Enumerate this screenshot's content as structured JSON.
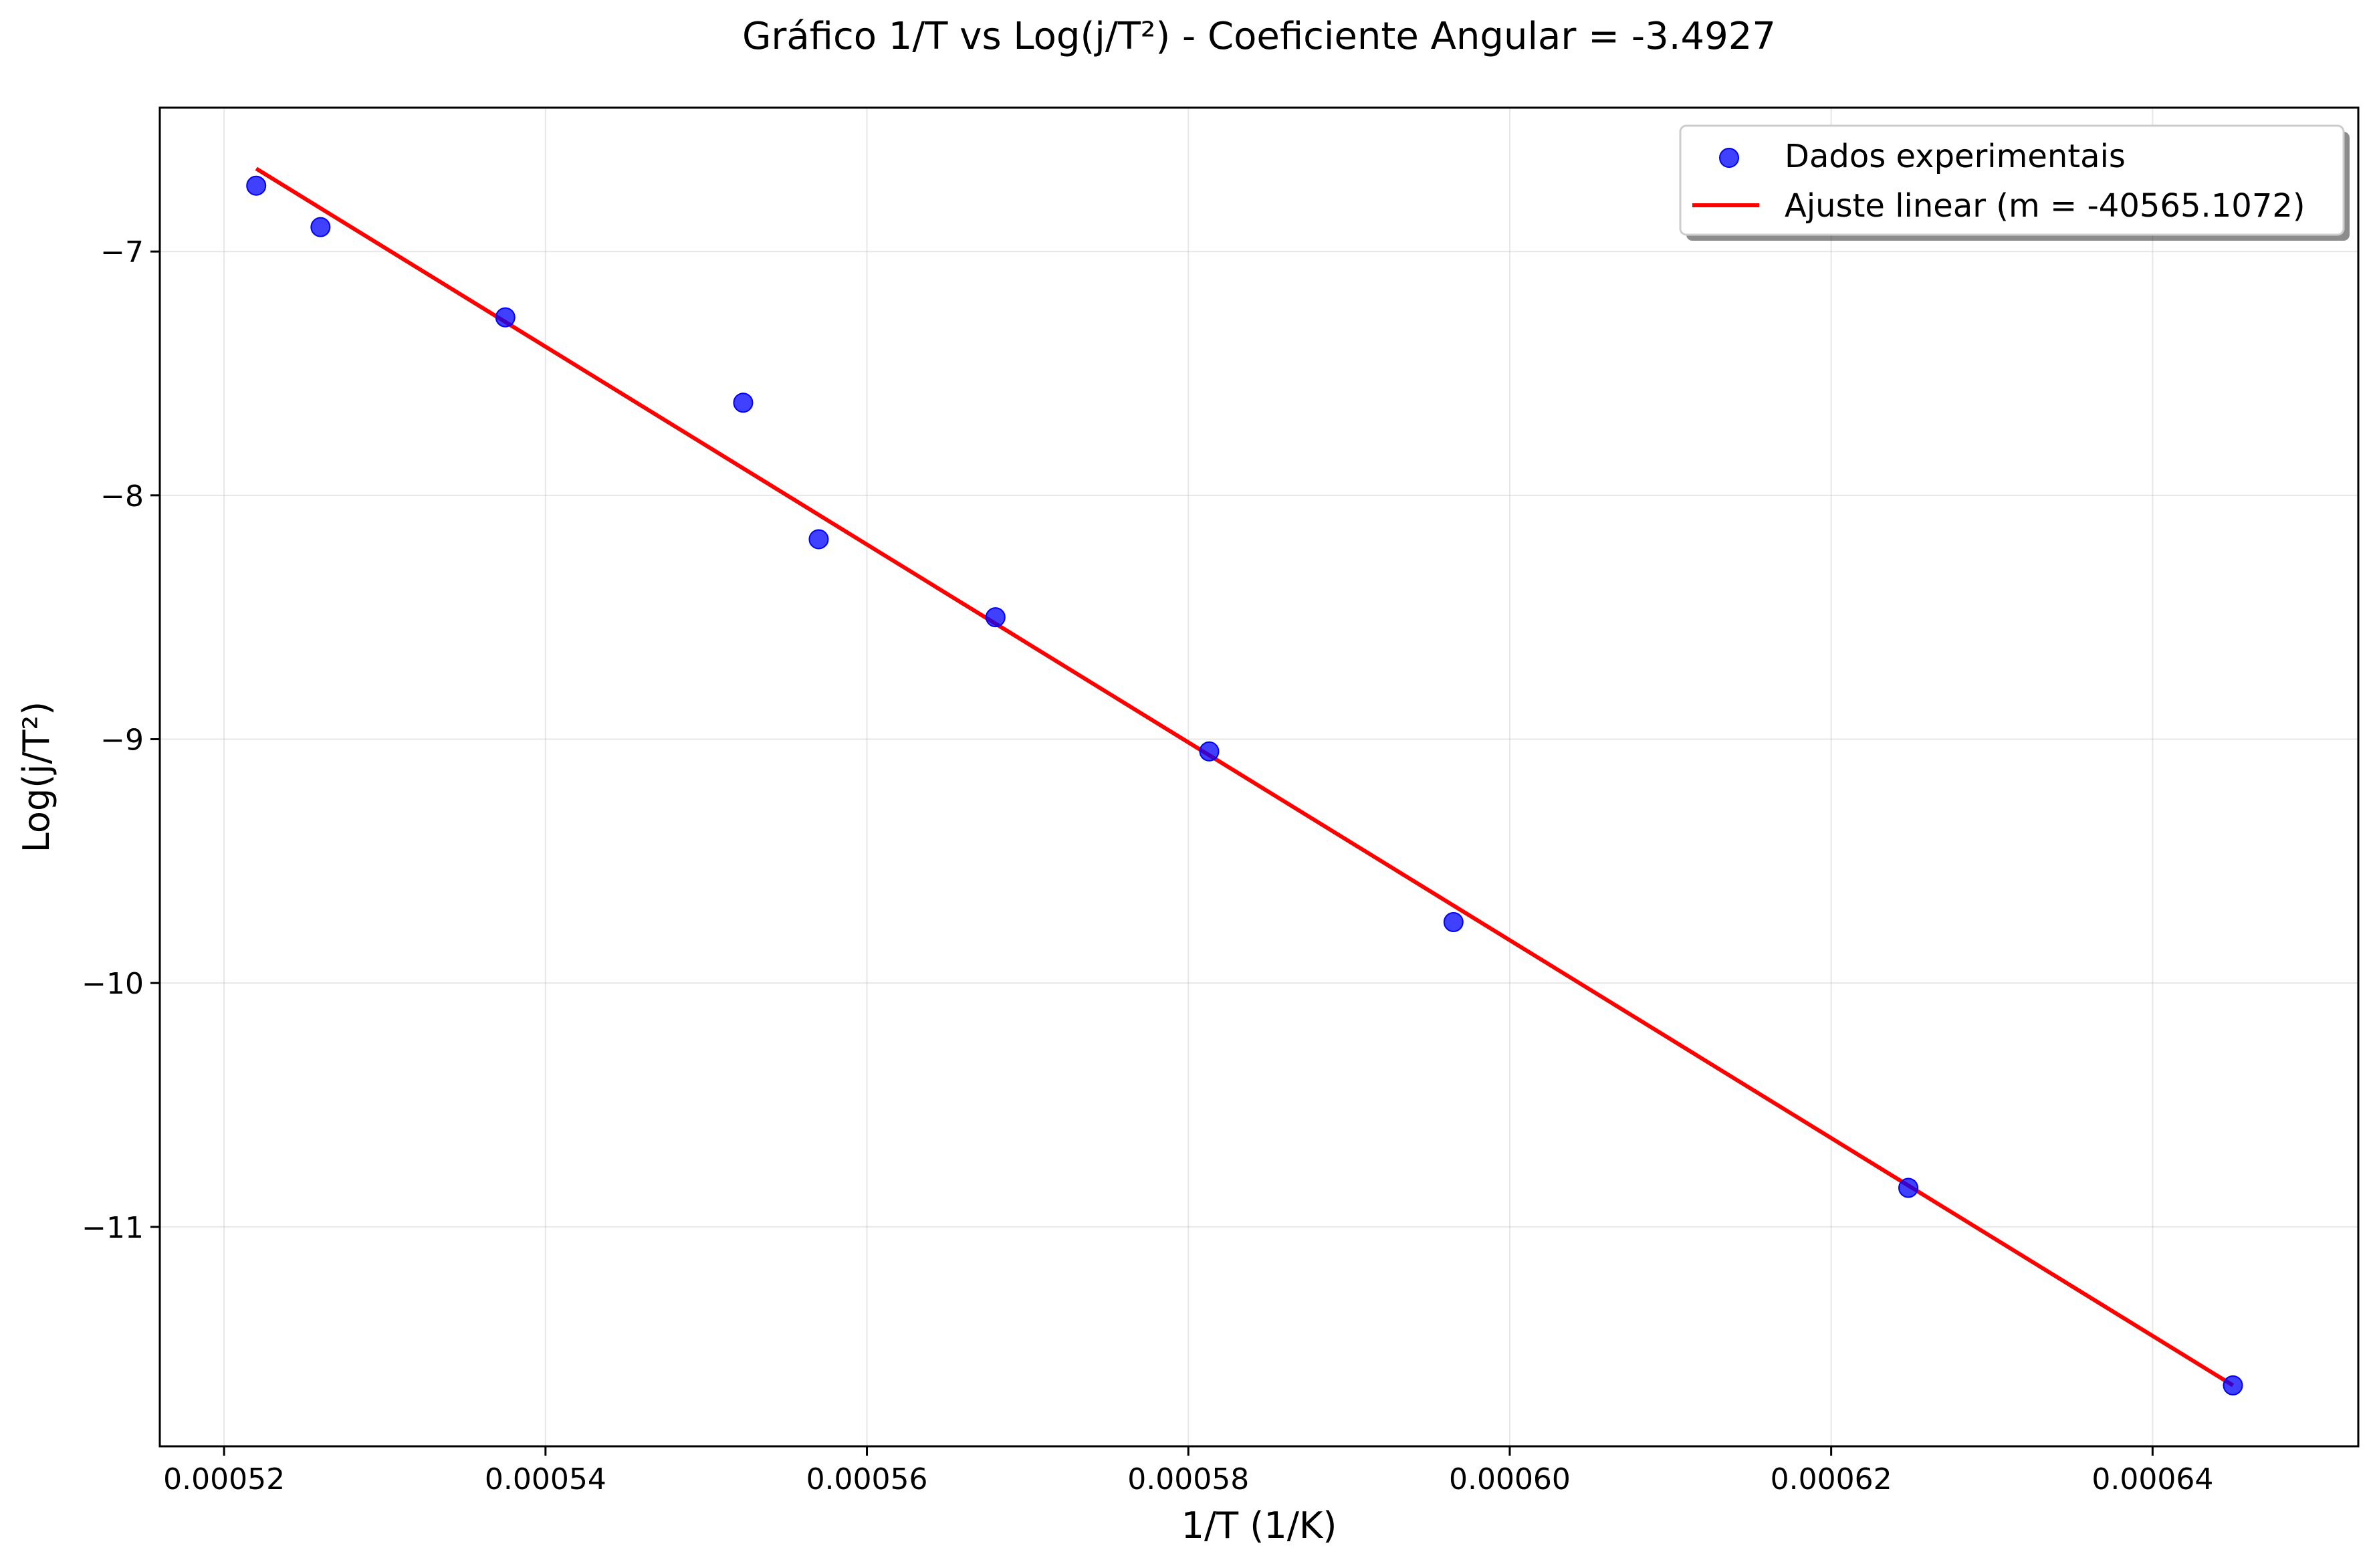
{
  "chart_data": {
    "type": "scatter",
    "title": "Gráfico 1/T vs Log(j/T²) - Coeficiente Angular = -3.4927",
    "xlabel": "1/T (1/K)",
    "ylabel": "Log(j/T²)",
    "xlim": [
      0.000516,
      0.0006528
    ],
    "ylim": [
      -11.9,
      -6.41
    ],
    "x_ticks": [
      0.00052,
      0.00054,
      0.00056,
      0.00058,
      0.0006,
      0.00062,
      0.00064
    ],
    "x_tick_labels": [
      "0.00052",
      "0.00054",
      "0.00056",
      "0.00058",
      "0.00060",
      "0.00062",
      "0.00064"
    ],
    "y_ticks": [
      -11,
      -10,
      -9,
      -8,
      -7
    ],
    "y_tick_labels": [
      "−11",
      "−10",
      "−9",
      "−8",
      "−7"
    ],
    "grid": true,
    "legend_position": "top-right",
    "series": [
      {
        "name": "Dados experimentais",
        "kind": "scatter",
        "color": "#0000ff",
        "points": [
          {
            "x": 0.000522,
            "y": -6.73
          },
          {
            "x": 0.000526,
            "y": -6.9
          },
          {
            "x": 0.0005375,
            "y": -7.27
          },
          {
            "x": 0.0005523,
            "y": -7.62
          },
          {
            "x": 0.000557,
            "y": -8.18
          },
          {
            "x": 0.000568,
            "y": -8.5
          },
          {
            "x": 0.0005813,
            "y": -9.05
          },
          {
            "x": 0.0005965,
            "y": -9.75
          },
          {
            "x": 0.0006248,
            "y": -10.84
          },
          {
            "x": 0.000645,
            "y": -11.65
          }
        ]
      },
      {
        "name": "Ajuste linear (m = -40565.1072)",
        "kind": "line",
        "color": "#ff0000",
        "points": [
          {
            "x": 0.000522,
            "y": -6.66
          },
          {
            "x": 0.000645,
            "y": -11.65
          }
        ]
      }
    ]
  }
}
